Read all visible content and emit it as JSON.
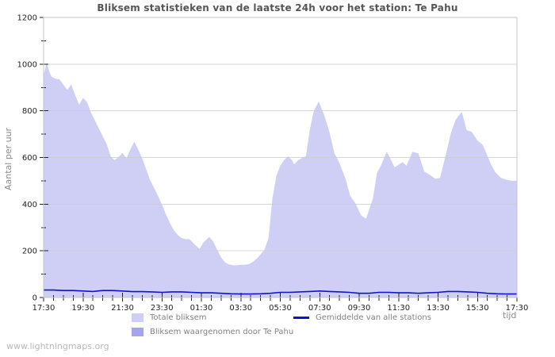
{
  "title": "Bliksem statistieken van de laatste 24h voor het station: Te Pahu",
  "watermark": "www.lightningmaps.org",
  "chart_data": {
    "type": "area",
    "title": "Bliksem statistieken van de laatste 24h voor het station: Te Pahu",
    "xlabel": "tijd",
    "ylabel": "Aantal per uur",
    "xlim": [
      0,
      24
    ],
    "ylim": [
      0,
      1200
    ],
    "y_major_step": 200,
    "y_minor_step": 100,
    "x_major_step_hours": 2,
    "x_minor_step_hours": 0.5,
    "grid": "horizontal-only",
    "legend_position": "below",
    "x_tick_labels": [
      "17:30",
      "19:30",
      "21:30",
      "23:30",
      "01:30",
      "03:30",
      "05:30",
      "07:30",
      "09:30",
      "11:30",
      "13:30",
      "15:30",
      "17:30"
    ],
    "y_tick_labels": [
      "0",
      "200",
      "400",
      "600",
      "800",
      "1000",
      "1200"
    ],
    "colors": {
      "area_total": "#cfcff5",
      "area_station": "#a5a5ec",
      "avg_line": "#1212cc",
      "grid": "#cccccc",
      "frame": "#c6c6c6",
      "tick": "#222222",
      "tick_label": "#222222"
    },
    "legend": [
      {
        "label": "Totale bliksem",
        "type": "area",
        "color": "#cfcff5"
      },
      {
        "label": "Bliksem waargenomen door Te Pahu",
        "type": "area",
        "color": "#a5a5ec"
      },
      {
        "label": "Gemiddelde van alle stations",
        "type": "line",
        "color": "#1212cc"
      }
    ],
    "series": [
      {
        "name": "Totale bliksem",
        "kind": "area",
        "color": "#cfcff5",
        "points": [
          [
            0,
            950
          ],
          [
            0.15,
            1008
          ],
          [
            0.3,
            965
          ],
          [
            0.4,
            946
          ],
          [
            0.6,
            938
          ],
          [
            0.8,
            935
          ],
          [
            1,
            912
          ],
          [
            1.2,
            890
          ],
          [
            1.4,
            912
          ],
          [
            1.6,
            868
          ],
          [
            1.8,
            827
          ],
          [
            2,
            855
          ],
          [
            2.2,
            838
          ],
          [
            2.4,
            793
          ],
          [
            2.6,
            759
          ],
          [
            2.8,
            725
          ],
          [
            3,
            691
          ],
          [
            3.2,
            657
          ],
          [
            3.4,
            605
          ],
          [
            3.6,
            589
          ],
          [
            3.8,
            602
          ],
          [
            4,
            620
          ],
          [
            4.2,
            596
          ],
          [
            4.4,
            634
          ],
          [
            4.6,
            668
          ],
          [
            4.8,
            634
          ],
          [
            5,
            595
          ],
          [
            5.2,
            550
          ],
          [
            5.4,
            504
          ],
          [
            5.6,
            470
          ],
          [
            5.8,
            436
          ],
          [
            6,
            398
          ],
          [
            6.2,
            357
          ],
          [
            6.4,
            320
          ],
          [
            6.6,
            289
          ],
          [
            6.8,
            268
          ],
          [
            7,
            255
          ],
          [
            7.2,
            250
          ],
          [
            7.4,
            250
          ],
          [
            7.6,
            233
          ],
          [
            7.9,
            208
          ],
          [
            8.1,
            235
          ],
          [
            8.4,
            260
          ],
          [
            8.6,
            240
          ],
          [
            8.8,
            205
          ],
          [
            9,
            172
          ],
          [
            9.2,
            150
          ],
          [
            9.4,
            142
          ],
          [
            9.6,
            138
          ],
          [
            9.8,
            138
          ],
          [
            10,
            140
          ],
          [
            10.2,
            140
          ],
          [
            10.4,
            143
          ],
          [
            10.6,
            152
          ],
          [
            10.8,
            166
          ],
          [
            11,
            185
          ],
          [
            11.2,
            205
          ],
          [
            11.4,
            255
          ],
          [
            11.6,
            424
          ],
          [
            11.8,
            520
          ],
          [
            12,
            565
          ],
          [
            12.2,
            590
          ],
          [
            12.4,
            605
          ],
          [
            12.6,
            588
          ],
          [
            12.7,
            570
          ],
          [
            12.9,
            588
          ],
          [
            13.1,
            598
          ],
          [
            13.3,
            605
          ],
          [
            13.5,
            720
          ],
          [
            13.7,
            800
          ],
          [
            13.95,
            840
          ],
          [
            14.2,
            788
          ],
          [
            14.4,
            735
          ],
          [
            14.5,
            706
          ],
          [
            14.75,
            617
          ],
          [
            15,
            577
          ],
          [
            15.3,
            510
          ],
          [
            15.55,
            435
          ],
          [
            15.8,
            405
          ],
          [
            16.1,
            352
          ],
          [
            16.35,
            338
          ],
          [
            16.7,
            425
          ],
          [
            16.9,
            533
          ],
          [
            17.1,
            565
          ],
          [
            17.4,
            625
          ],
          [
            17.8,
            558
          ],
          [
            18.2,
            580
          ],
          [
            18.4,
            565
          ],
          [
            18.7,
            624
          ],
          [
            19,
            618
          ],
          [
            19.3,
            540
          ],
          [
            19.6,
            525
          ],
          [
            19.85,
            509
          ],
          [
            20.1,
            512
          ],
          [
            20.4,
            615
          ],
          [
            20.65,
            705
          ],
          [
            20.9,
            762
          ],
          [
            21.2,
            796
          ],
          [
            21.45,
            717
          ],
          [
            21.7,
            710
          ],
          [
            22,
            672
          ],
          [
            22.25,
            655
          ],
          [
            22.4,
            628
          ],
          [
            22.65,
            577
          ],
          [
            22.9,
            537
          ],
          [
            23.2,
            512
          ],
          [
            23.45,
            505
          ],
          [
            23.7,
            500
          ],
          [
            24,
            500
          ]
        ]
      },
      {
        "name": "Bliksem waargenomen door Te Pahu",
        "kind": "area",
        "color": "#a5a5ec",
        "points": [
          [
            0,
            0
          ],
          [
            24,
            0
          ]
        ]
      },
      {
        "name": "Gemiddelde van alle stations",
        "kind": "line",
        "color": "#1212cc",
        "points": [
          [
            0,
            32
          ],
          [
            0.5,
            32
          ],
          [
            1,
            30
          ],
          [
            1.5,
            30
          ],
          [
            2,
            28
          ],
          [
            2.5,
            26
          ],
          [
            3,
            30
          ],
          [
            3.5,
            30
          ],
          [
            4,
            28
          ],
          [
            4.5,
            25
          ],
          [
            5,
            25
          ],
          [
            5.5,
            24
          ],
          [
            6,
            22
          ],
          [
            6.5,
            24
          ],
          [
            7,
            24
          ],
          [
            7.5,
            22
          ],
          [
            8,
            20
          ],
          [
            8.5,
            20
          ],
          [
            9,
            18
          ],
          [
            9.5,
            16
          ],
          [
            10,
            15
          ],
          [
            10.5,
            15
          ],
          [
            11,
            16
          ],
          [
            11.5,
            18
          ],
          [
            12,
            22
          ],
          [
            12.5,
            22
          ],
          [
            13,
            24
          ],
          [
            13.5,
            26
          ],
          [
            14,
            28
          ],
          [
            14.5,
            26
          ],
          [
            15,
            24
          ],
          [
            15.5,
            22
          ],
          [
            16,
            18
          ],
          [
            16.5,
            18
          ],
          [
            17,
            22
          ],
          [
            17.5,
            22
          ],
          [
            18,
            20
          ],
          [
            18.5,
            20
          ],
          [
            19,
            18
          ],
          [
            19.5,
            20
          ],
          [
            20,
            22
          ],
          [
            20.5,
            26
          ],
          [
            21,
            26
          ],
          [
            21.5,
            24
          ],
          [
            22,
            22
          ],
          [
            22.5,
            18
          ],
          [
            23,
            16
          ],
          [
            23.5,
            15
          ],
          [
            24,
            15
          ]
        ]
      }
    ]
  }
}
